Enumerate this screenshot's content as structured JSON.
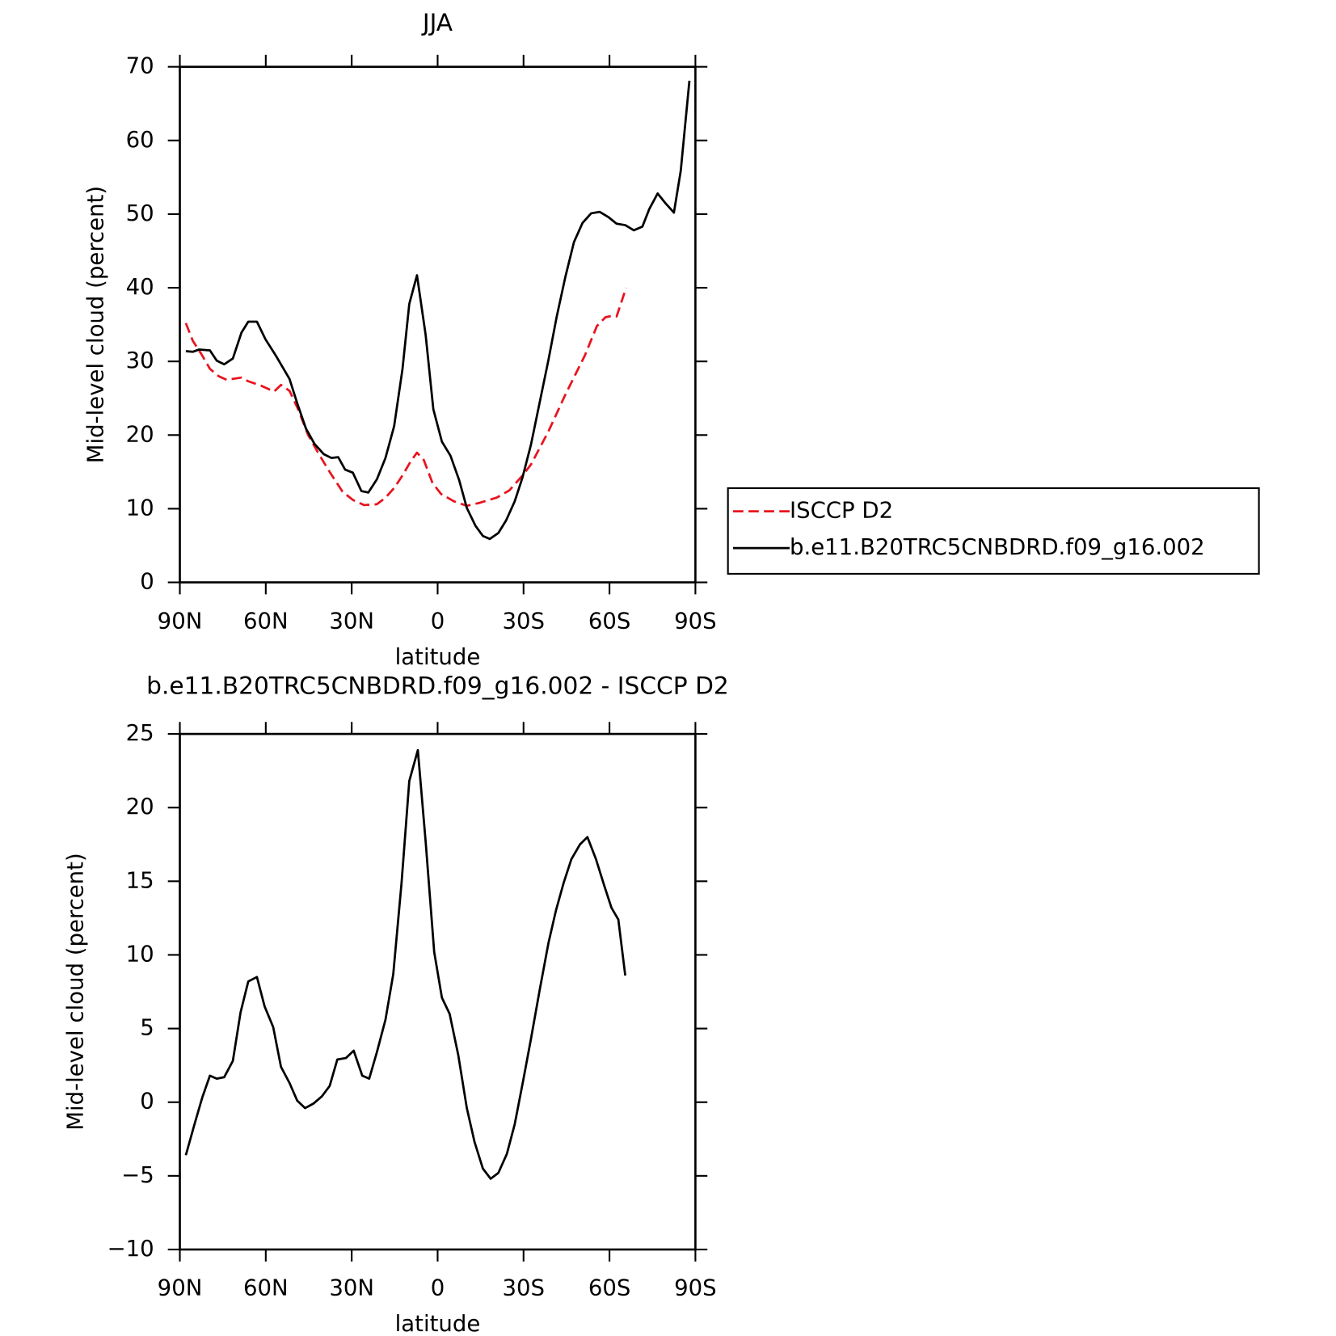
{
  "chart_data": [
    {
      "type": "line",
      "title": "JJA",
      "x_label": "latitude",
      "y_label": "Mid-level cloud (percent)",
      "xlim": [
        90,
        -90
      ],
      "xticks": [
        {
          "value": 90,
          "label": "90N"
        },
        {
          "value": 60,
          "label": "60N"
        },
        {
          "value": 30,
          "label": "30N"
        },
        0,
        {
          "value": -30,
          "label": "30S"
        },
        {
          "value": -60,
          "label": "60S"
        },
        {
          "value": -90,
          "label": "90S"
        }
      ],
      "ylim": [
        0,
        70
      ],
      "yticks": [
        0,
        10,
        20,
        30,
        40,
        50,
        60,
        70
      ],
      "series": [
        {
          "name": "ISCCP D2",
          "color": "#e8141e",
          "line_style": "dashed",
          "x": [
            87.9,
            85.5,
            82.5,
            79.5,
            76.5,
            73.6,
            68.5,
            66.1,
            61.6,
            57.1,
            54.7,
            51.7,
            48.7,
            45.2,
            41.6,
            37.7,
            33.2,
            29.6,
            25.7,
            21.2,
            18.2,
            15.2,
            12.3,
            9.3,
            7.2,
            4.8,
            1.8,
            -1.2,
            -5.7,
            -10.2,
            -14.7,
            -20.6,
            -25.1,
            -29.6,
            -32.6,
            -38.7,
            -44.6,
            -51.4,
            -55.6,
            -58.6,
            -61.0,
            -62.5,
            -65.8
          ],
          "values": [
            35.2,
            32.8,
            31.0,
            29.0,
            28.0,
            27.5,
            27.8,
            27.3,
            26.7,
            25.9,
            26.8,
            26.0,
            23.5,
            20.0,
            17.5,
            15.0,
            12.3,
            11.2,
            10.5,
            10.6,
            11.5,
            12.8,
            14.5,
            16.5,
            17.6,
            16.6,
            13.5,
            12.0,
            11.0,
            10.4,
            10.8,
            11.5,
            12.5,
            14.5,
            16.0,
            20.5,
            25.5,
            30.8,
            34.8,
            36.0,
            36.2,
            36.1,
            40.0
          ]
        },
        {
          "name": "b.e11.B20TRC5CNBDRD.f09_g16.002",
          "color": "#000000",
          "line_style": "solid",
          "x": [
            87.9,
            85.5,
            83.4,
            79.5,
            77.1,
            74.5,
            71.5,
            68.5,
            66.1,
            63.1,
            60.1,
            56.5,
            51.7,
            49.0,
            46.0,
            43.0,
            39.7,
            37.1,
            34.7,
            32.3,
            29.6,
            26.6,
            24.2,
            21.2,
            18.2,
            15.2,
            12.3,
            9.9,
            7.2,
            4.2,
            1.5,
            -1.5,
            -4.5,
            -7.5,
            -10.2,
            -13.2,
            -15.8,
            -18.2,
            -21.2,
            -23.9,
            -26.9,
            -29.6,
            -32.6,
            -35.6,
            -38.7,
            -41.6,
            -44.6,
            -47.6,
            -50.6,
            -53.6,
            -56.6,
            -59.6,
            -62.5,
            -65.5,
            -68.5,
            -71.5,
            -73.9,
            -76.8,
            -79.5,
            -82.5,
            -84.9,
            -87.9
          ],
          "values": [
            31.4,
            31.3,
            31.6,
            31.5,
            30.1,
            29.6,
            30.4,
            33.9,
            35.4,
            35.4,
            33.0,
            30.8,
            27.6,
            24.3,
            20.9,
            18.8,
            17.4,
            16.9,
            17.0,
            15.3,
            14.9,
            12.4,
            12.2,
            14.0,
            16.9,
            21.2,
            28.9,
            37.8,
            41.7,
            33.6,
            23.5,
            19.1,
            17.2,
            13.9,
            10.1,
            7.7,
            6.3,
            5.9,
            6.7,
            8.4,
            11.0,
            14.2,
            18.7,
            24.4,
            30.2,
            36.1,
            41.5,
            46.2,
            48.8,
            50.1,
            50.3,
            49.6,
            48.7,
            48.5,
            47.8,
            48.3,
            50.7,
            52.8,
            51.5,
            50.2,
            55.9,
            68.1
          ]
        }
      ]
    },
    {
      "type": "line",
      "title": "b.e11.B20TRC5CNBDRD.f09_g16.002 - ISCCP D2",
      "x_label": "latitude",
      "y_label": "Mid-level cloud (percent)",
      "xlim": [
        90,
        -90
      ],
      "xticks": [
        {
          "value": 90,
          "label": "90N"
        },
        {
          "value": 60,
          "label": "60N"
        },
        {
          "value": 30,
          "label": "30N"
        },
        0,
        {
          "value": -30,
          "label": "30S"
        },
        {
          "value": -60,
          "label": "60S"
        },
        {
          "value": -90,
          "label": "90S"
        }
      ],
      "ylim": [
        -10,
        25
      ],
      "yticks": [
        {
          "value": -10,
          "label": "−10"
        },
        {
          "value": -5,
          "label": "−5"
        },
        0,
        5,
        10,
        15,
        20,
        25
      ],
      "series": [
        {
          "color": "#000000",
          "line_style": "solid",
          "x": [
            87.9,
            84.9,
            82.2,
            79.5,
            77.1,
            74.5,
            71.5,
            68.8,
            66.1,
            63.1,
            60.4,
            57.4,
            54.7,
            51.7,
            49.0,
            46.3,
            43.4,
            40.4,
            37.7,
            35.0,
            32.0,
            29.3,
            26.3,
            23.9,
            21.2,
            18.2,
            15.5,
            12.6,
            9.9,
            6.9,
            4.2,
            1.2,
            -1.5,
            -4.2,
            -7.2,
            -10.2,
            -12.9,
            -15.8,
            -18.5,
            -21.2,
            -24.2,
            -26.9,
            -29.9,
            -32.6,
            -35.6,
            -38.7,
            -41.3,
            -44.0,
            -46.7,
            -49.7,
            -52.3,
            -55.3,
            -58.0,
            -60.7,
            -63.1,
            -65.5
          ],
          "values": [
            -3.6,
            -1.5,
            0.3,
            1.8,
            1.6,
            1.7,
            2.8,
            6.1,
            8.2,
            8.5,
            6.5,
            5.1,
            2.4,
            1.3,
            0.1,
            -0.4,
            -0.1,
            0.4,
            1.1,
            2.9,
            3.0,
            3.5,
            1.8,
            1.6,
            3.4,
            5.6,
            8.7,
            14.9,
            21.8,
            23.9,
            17.7,
            10.2,
            7.1,
            6.0,
            3.2,
            -0.4,
            -2.7,
            -4.5,
            -5.2,
            -4.8,
            -3.5,
            -1.5,
            1.5,
            4.3,
            7.6,
            10.8,
            13.0,
            14.9,
            16.5,
            17.5,
            18.0,
            16.5,
            14.8,
            13.2,
            12.4,
            8.6
          ]
        }
      ]
    }
  ]
}
